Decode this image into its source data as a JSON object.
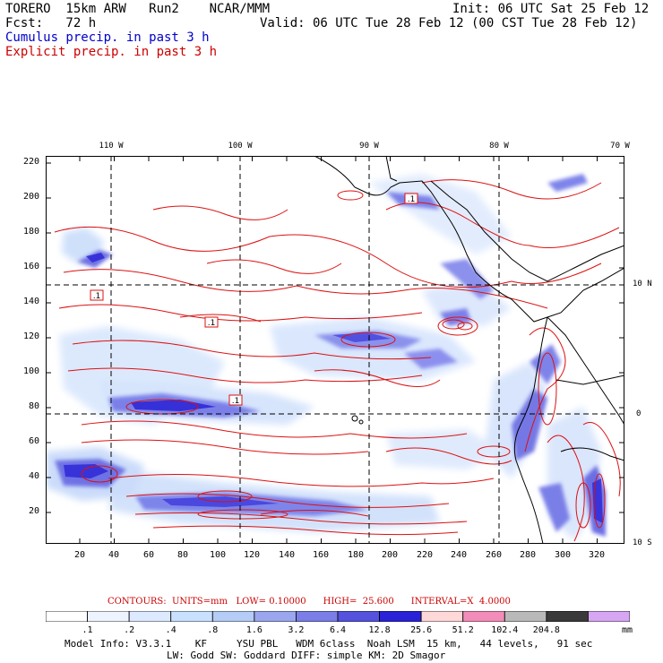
{
  "header": {
    "model": "TORERO  15km ARW   Run2    NCAR/MMM",
    "init": "Init: 06 UTC Sat 25 Feb 12",
    "fcst": "Fcst:   72 h",
    "valid": "Valid: 06 UTC Tue 28 Feb 12 (00 CST Tue 28 Feb 12)",
    "line3": "Cumulus precip. in past 3 h",
    "line4": "Explicit precip. in past 3 h",
    "line3_color": "#0000cc",
    "line4_color": "#cc0000"
  },
  "map": {
    "lon_labels": [
      "110 W",
      "100 W",
      "90 W",
      "80 W",
      "70 W"
    ],
    "lat_labels": [
      "10 N",
      "0",
      "10 S"
    ],
    "y_ticks": [
      "220",
      "200",
      "180",
      "160",
      "140",
      "120",
      "100",
      "80",
      "60",
      "40",
      "20"
    ],
    "x_ticks": [
      "20",
      "40",
      "60",
      "80",
      "100",
      "120",
      "140",
      "160",
      "180",
      "200",
      "220",
      "240",
      "260",
      "280",
      "300",
      "320"
    ],
    "low_labels": [
      ".1",
      ".1",
      ".1",
      ".1"
    ]
  },
  "contours_line": "CONTOURS:  UNITS=mm   LOW= 0.10000      HIGH=  25.600      INTERVAL=X  4.0000",
  "colorbar": {
    "labels": [
      ".1",
      ".2",
      ".4",
      ".8",
      "1.6",
      "3.2",
      "6.4",
      "12.8",
      "25.6",
      "51.2",
      "102.4",
      "204.8"
    ],
    "unit": "mm",
    "colors": [
      "#ffffff",
      "#eef4ff",
      "#dde9ff",
      "#c9e0ff",
      "#b4ccf6",
      "#9aa6ee",
      "#7a7ee6",
      "#5552dd",
      "#2a22d6",
      "#ffd8d8",
      "#f28cb8",
      "#b9b9b9",
      "#3a3a3a",
      "#d6a6f2"
    ]
  },
  "footer": {
    "line1": "Model Info: V3.3.1    KF     YSU PBL   WDM 6class  Noah LSM  15 km,   44 levels,   91 sec",
    "line2": "LW: Godd SW: Goddard DIFF: simple KM: 2D Smagor"
  }
}
